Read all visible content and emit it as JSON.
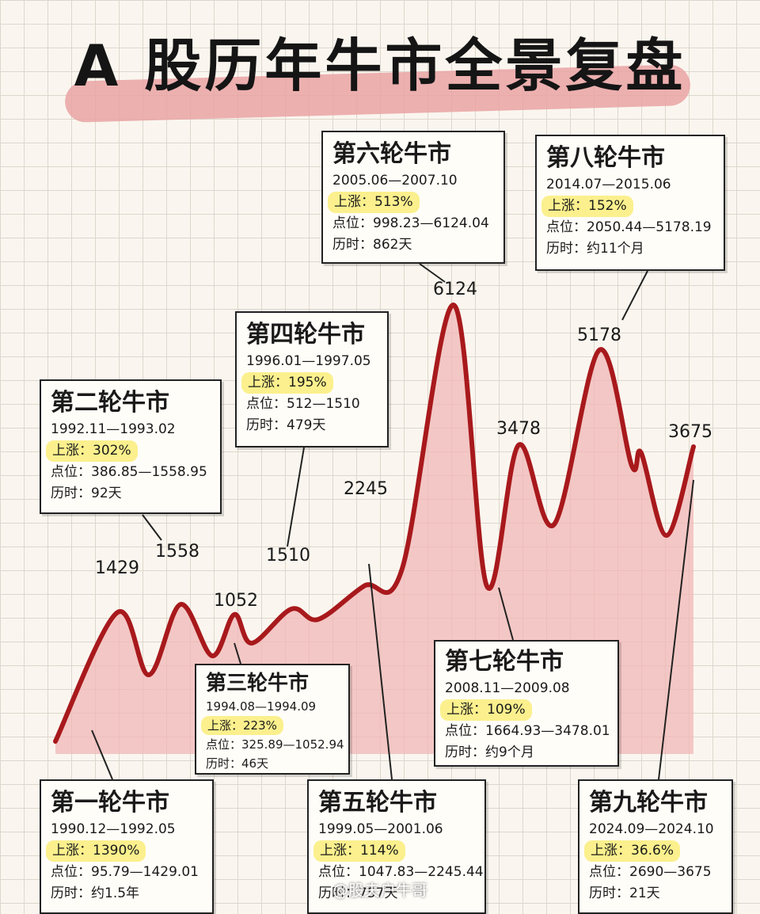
{
  "title": "A 股历年牛市全景复盘",
  "watermark": "@股夫户牛哥",
  "chart_data": {
    "type": "area",
    "peaks": [
      {
        "label": "1429",
        "value": 1429
      },
      {
        "label": "1558",
        "value": 1558
      },
      {
        "label": "1052",
        "value": 1052
      },
      {
        "label": "1510",
        "value": 1510
      },
      {
        "label": "2245",
        "value": 2245
      },
      {
        "label": "6124",
        "value": 6124
      },
      {
        "label": "3478",
        "value": 3478
      },
      {
        "label": "5178",
        "value": 5178
      },
      {
        "label": "3675",
        "value": 3675
      }
    ]
  },
  "bulls": [
    {
      "name": "第一轮牛市",
      "period": "1990.12—1992.05",
      "rise_label": "上涨：",
      "rise": "1390%",
      "points_label": "点位：",
      "points": "95.79—1429.01",
      "duration_label": "历时：",
      "duration": "约1.5年"
    },
    {
      "name": "第二轮牛市",
      "period": "1992.11—1993.02",
      "rise_label": "上涨：",
      "rise": "302%",
      "points_label": "点位：",
      "points": "386.85—1558.95",
      "duration_label": "历时：",
      "duration": "92天"
    },
    {
      "name": "第三轮牛市",
      "period": "1994.08—1994.09",
      "rise_label": "上涨：",
      "rise": "223%",
      "points_label": "点位：",
      "points": "325.89—1052.94",
      "duration_label": "历时：",
      "duration": "46天"
    },
    {
      "name": "第四轮牛市",
      "period": "1996.01—1997.05",
      "rise_label": "上涨：",
      "rise": "195%",
      "points_label": "点位：",
      "points": "512—1510",
      "duration_label": "历时：",
      "duration": "479天"
    },
    {
      "name": "第五轮牛市",
      "period": "1999.05—2001.06",
      "rise_label": "上涨：",
      "rise": "114%",
      "points_label": "点位：",
      "points": "1047.83—2245.44",
      "duration_label": "历时：",
      "duration": "757天"
    },
    {
      "name": "第六轮牛市",
      "period": "2005.06—2007.10",
      "rise_label": "上涨：",
      "rise": "513%",
      "points_label": "点位：",
      "points": "998.23—6124.04",
      "duration_label": "历时：",
      "duration": "862天"
    },
    {
      "name": "第七轮牛市",
      "period": "2008.11—2009.08",
      "rise_label": "上涨：",
      "rise": "109%",
      "points_label": "点位：",
      "points": "1664.93—3478.01",
      "duration_label": "历时：",
      "duration": "约9个月"
    },
    {
      "name": "第八轮牛市",
      "period": "2014.07—2015.06",
      "rise_label": "上涨：",
      "rise": "152%",
      "points_label": "点位：",
      "points": "2050.44—5178.19",
      "duration_label": "历时：",
      "duration": "约11个月"
    },
    {
      "name": "第九轮牛市",
      "period": "2024.09—2024.10",
      "rise_label": "上涨：",
      "rise": "36.6%",
      "points_label": "点位：",
      "points": "2690—3675",
      "duration_label": "历时：",
      "duration": "21天"
    }
  ]
}
